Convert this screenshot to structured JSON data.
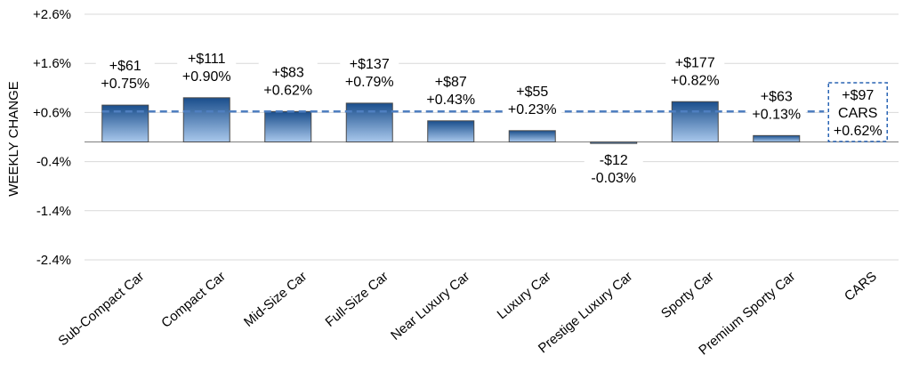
{
  "chart_data": {
    "type": "bar",
    "ylabel": "WEEKLY CHANGE",
    "ylim": [
      -2.4,
      2.6
    ],
    "yticks": [
      2.6,
      1.6,
      0.6,
      -0.4,
      -1.4,
      -2.4
    ],
    "ytick_labels": [
      "+2.6%",
      "+1.6%",
      "+0.6%",
      "-0.4%",
      "-1.4%",
      "-2.4%"
    ],
    "grid": true,
    "categories": [
      "Sub-Compact Car",
      "Compact Car",
      "Mid-Size Car",
      "Full-Size Car",
      "Near Luxury Car",
      "Luxury Car",
      "Prestige Luxury Car",
      "Sporty Car",
      "Premium Sporty Car",
      "CARS"
    ],
    "values": [
      0.75,
      0.9,
      0.62,
      0.79,
      0.43,
      0.23,
      -0.03,
      0.82,
      0.13,
      null
    ],
    "dollar_labels": [
      "+$61",
      "+$111",
      "+$83",
      "+$137",
      "+$87",
      "+$55",
      "-$12",
      "+$177",
      "+$63",
      "+$97"
    ],
    "percent_labels": [
      "+0.75%",
      "+0.90%",
      "+0.62%",
      "+0.79%",
      "+0.43%",
      "+0.23%",
      "-0.03%",
      "+0.82%",
      "+0.13%",
      "+0.62%"
    ],
    "average_line": 0.62,
    "summary_box": {
      "dollar": "+$97",
      "name": "CARS",
      "percent": "+0.62%"
    },
    "colors": {
      "bar_top": "#1a4e8c",
      "bar_bottom": "#a9c8ec",
      "bar_stroke": "#4a4a4a",
      "average_line": "#4f7fc0",
      "summary_border": "#2a64b4",
      "grid": "#d9d9d9"
    }
  }
}
